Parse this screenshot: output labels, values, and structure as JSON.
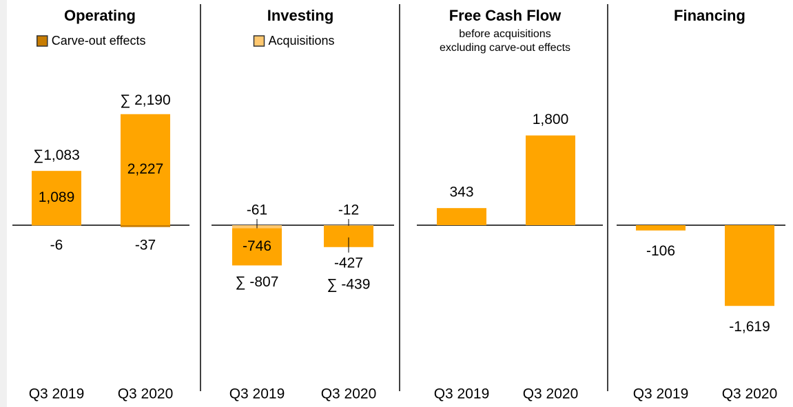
{
  "chart_data": [
    {
      "type": "bar",
      "title": "Operating",
      "categories": [
        "Q3 2019",
        "Q3 2020"
      ],
      "series": [
        {
          "color": "#ffa500",
          "values": [
            1089,
            2227
          ],
          "value_labels": [
            "1,089",
            "2,227"
          ]
        },
        {
          "name": "Carve-out effects",
          "color": "#c77c02",
          "values": [
            -6,
            -37
          ],
          "value_labels": [
            "-6",
            "-37"
          ]
        }
      ],
      "totals": [
        1083,
        2190
      ],
      "total_labels": [
        "∑1,083",
        "∑ 2,190"
      ],
      "ylim": [
        -2500,
        2500
      ]
    },
    {
      "type": "bar",
      "title": "Investing",
      "categories": [
        "Q3 2019",
        "Q3 2020"
      ],
      "series": [
        {
          "name": "Acquisitions",
          "color": "#ffc870",
          "values": [
            -61,
            -12
          ],
          "value_labels": [
            "-61",
            "-12"
          ]
        },
        {
          "color": "#ffa500",
          "values": [
            -746,
            -427
          ],
          "value_labels": [
            "-746",
            "-427"
          ]
        }
      ],
      "totals": [
        -807,
        -439
      ],
      "total_labels": [
        "∑ -807",
        "∑ -439"
      ],
      "ylim": [
        -2500,
        2500
      ]
    },
    {
      "type": "bar",
      "title": "Free Cash Flow",
      "subtitle": [
        "before acquisitions",
        "excluding carve-out effects"
      ],
      "categories": [
        "Q3 2019",
        "Q3 2020"
      ],
      "series": [
        {
          "color": "#ffa500",
          "values": [
            343,
            1800
          ],
          "value_labels": [
            "343",
            "1,800"
          ]
        }
      ],
      "ylim": [
        -2500,
        2500
      ]
    },
    {
      "type": "bar",
      "title": "Financing",
      "categories": [
        "Q3 2019",
        "Q3 2020"
      ],
      "series": [
        {
          "color": "#ffa500",
          "values": [
            -106,
            -1619
          ],
          "value_labels": [
            "-106",
            "-1,619"
          ]
        }
      ],
      "ylim": [
        -2500,
        2500
      ]
    }
  ]
}
